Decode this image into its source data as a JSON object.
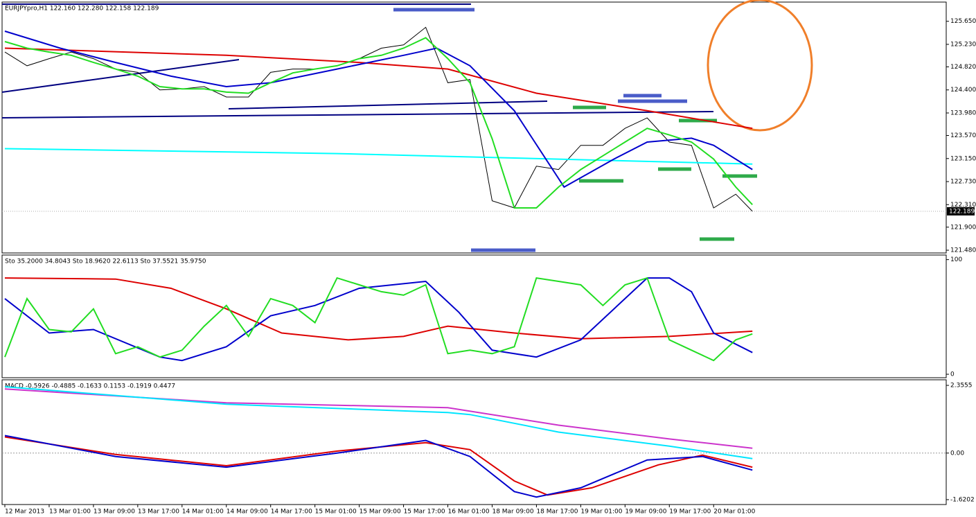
{
  "chart_data": [
    {
      "type": "line",
      "title": "EURJPYpro,H1  122.160 122.280 122.158 122.189",
      "xlim": [
        -0.5,
        170
      ],
      "ylim": [
        121.43,
        126.0
      ],
      "xticks": [
        {
          "value": 0,
          "label": "12 Mar 2013"
        },
        {
          "value": 8,
          "label": "13 Mar 01:00"
        },
        {
          "value": 16,
          "label": "13 Mar 09:00"
        },
        {
          "value": 24,
          "label": "13 Mar 17:00"
        },
        {
          "value": 32,
          "label": "14 Mar 01:00"
        },
        {
          "value": 40,
          "label": "14 Mar 09:00"
        },
        {
          "value": 48,
          "label": "14 Mar 17:00"
        },
        {
          "value": 56,
          "label": "15 Mar 01:00"
        },
        {
          "value": 64,
          "label": "15 Mar 09:00"
        },
        {
          "value": 72,
          "label": "15 Mar 17:00"
        },
        {
          "value": 80,
          "label": "16 Mar 01:00"
        },
        {
          "value": 88,
          "label": "18 Mar 09:00"
        },
        {
          "value": 96,
          "label": "18 Mar 17:00"
        },
        {
          "value": 104,
          "label": "19 Mar 01:00"
        },
        {
          "value": 112,
          "label": "19 Mar 09:00"
        },
        {
          "value": 120,
          "label": "19 Mar 17:00"
        },
        {
          "value": 128,
          "label": "20 Mar 01:00"
        }
      ],
      "yticks": [
        {
          "value": 125.65,
          "label": "125.650"
        },
        {
          "value": 125.23,
          "label": "125.230"
        },
        {
          "value": 124.82,
          "label": "124.820"
        },
        {
          "value": 124.4,
          "label": "124.400"
        },
        {
          "value": 123.98,
          "label": "123.980"
        },
        {
          "value": 123.57,
          "label": "123.570"
        },
        {
          "value": 123.15,
          "label": "123.150"
        },
        {
          "value": 122.73,
          "label": "122.730"
        },
        {
          "value": 122.31,
          "label": "122.310"
        },
        {
          "value": 121.9,
          "label": "121.900"
        },
        {
          "value": 121.48,
          "label": "121.480"
        }
      ],
      "last_price": 122.189,
      "series": [
        {
          "color": "#000000",
          "x": [
            0,
            4,
            8,
            12,
            16,
            20,
            24,
            28,
            32,
            36,
            40,
            44,
            48,
            52,
            56,
            60,
            64,
            68,
            72,
            76,
            80,
            84,
            88,
            92,
            96,
            100,
            104,
            108,
            112,
            116,
            120,
            124,
            128,
            132,
            135
          ],
          "values": [
            125.09,
            124.84,
            124.97,
            125.09,
            124.97,
            124.78,
            124.72,
            124.4,
            124.42,
            124.46,
            124.27,
            124.27,
            124.72,
            124.78,
            124.78,
            124.84,
            124.97,
            125.16,
            125.22,
            125.54,
            124.53,
            124.59,
            122.38,
            122.25,
            123.01,
            122.95,
            123.39,
            123.39,
            123.7,
            123.89,
            123.45,
            123.39,
            122.25,
            122.5,
            122.189
          ]
        },
        {
          "color": "#00ffff",
          "x": [
            0,
            60,
            135
          ],
          "values": [
            123.33,
            123.24,
            123.05
          ]
        },
        {
          "color": "#dd0000",
          "x": [
            0,
            40,
            64,
            80,
            96,
            116,
            135
          ],
          "values": [
            125.16,
            125.03,
            124.9,
            124.78,
            124.34,
            124.02,
            123.7
          ]
        },
        {
          "color": "#0000cc",
          "x": [
            0,
            10,
            20,
            30,
            40,
            48,
            60,
            72,
            78,
            84,
            92,
            101,
            110,
            116,
            124,
            128,
            135
          ],
          "values": [
            125.47,
            125.16,
            124.9,
            124.65,
            124.46,
            124.53,
            124.78,
            125.03,
            125.16,
            124.84,
            124.02,
            122.63,
            123.14,
            123.45,
            123.52,
            123.39,
            122.95
          ]
        },
        {
          "color": "#22dd22",
          "x": [
            0,
            4,
            8,
            12,
            16,
            20,
            24,
            28,
            32,
            36,
            40,
            44,
            48,
            52,
            56,
            60,
            64,
            68,
            72,
            76,
            80,
            84,
            88,
            92,
            96,
            100,
            104,
            108,
            112,
            116,
            120,
            124,
            128,
            132,
            135
          ],
          "values": [
            125.28,
            125.16,
            125.09,
            125.03,
            124.9,
            124.78,
            124.65,
            124.46,
            124.42,
            124.42,
            124.36,
            124.34,
            124.53,
            124.71,
            124.78,
            124.84,
            124.97,
            125.03,
            125.16,
            125.35,
            124.97,
            124.53,
            123.51,
            122.25,
            122.25,
            122.63,
            122.95,
            123.2,
            123.45,
            123.7,
            123.58,
            123.45,
            123.14,
            122.63,
            122.31
          ]
        }
      ]
    },
    {
      "type": "line",
      "title": "Sto 35.2000 34.8043  Sto 18.9620 22.6113  Sto 37.5521 35.9750",
      "ylim": [
        -3,
        104
      ],
      "yticks": [
        100,
        0
      ],
      "series": [
        {
          "color": "#dd0000",
          "x": [
            0,
            20,
            30,
            40,
            50,
            62,
            72,
            80,
            92,
            104,
            120,
            135
          ],
          "values": [
            84,
            83,
            75,
            57,
            36,
            30,
            33,
            42,
            36,
            31,
            33,
            37.5521
          ]
        },
        {
          "color": "#0000cc",
          "x": [
            0,
            8,
            16,
            28,
            32,
            40,
            48,
            56,
            64,
            76,
            82,
            88,
            96,
            104,
            112,
            116,
            120,
            124,
            128,
            135
          ],
          "values": [
            66,
            36,
            39,
            15,
            12,
            24,
            51,
            60,
            75,
            81,
            54,
            21,
            15,
            30,
            66,
            84,
            84,
            72,
            36,
            18.962
          ]
        },
        {
          "color": "#22dd22",
          "x": [
            0,
            4,
            8,
            12,
            16,
            20,
            24,
            28,
            32,
            36,
            40,
            44,
            48,
            52,
            56,
            60,
            64,
            68,
            72,
            76,
            80,
            84,
            88,
            92,
            96,
            100,
            104,
            108,
            112,
            116,
            120,
            124,
            128,
            132,
            135
          ],
          "values": [
            15,
            66,
            39,
            37,
            57,
            18,
            24,
            15,
            21,
            42,
            60,
            33,
            66,
            60,
            45,
            84,
            78,
            72,
            69,
            78,
            18,
            21,
            18,
            24,
            84,
            81,
            78,
            60,
            78,
            84,
            30,
            21,
            12,
            30,
            35.2
          ]
        }
      ]
    },
    {
      "type": "line",
      "title": "MACD -0.5926 -0.4885 -0.1633 0.1153 -0.1919 0.4477",
      "ylim": [
        -1.79,
        2.55
      ],
      "yticks": [
        2.3555,
        {
          "value": 0,
          "label": "0.00"
        },
        -1.6202
      ],
      "series": [
        {
          "color": "#cc33cc",
          "x": [
            0,
            40,
            80,
            100,
            120,
            135
          ],
          "values": [
            2.23,
            1.75,
            1.58,
            0.97,
            0.49,
            0.17
          ]
        },
        {
          "color": "#00e5ff",
          "x": [
            0,
            40,
            80,
            84,
            100,
            120,
            135
          ],
          "values": [
            2.31,
            1.7,
            1.41,
            1.34,
            0.73,
            0.24,
            -0.1919
          ]
        },
        {
          "color": "#dd0000",
          "x": [
            0,
            20,
            40,
            60,
            76,
            84,
            92,
            98,
            106,
            118,
            126,
            135
          ],
          "values": [
            0.56,
            -0.05,
            -0.44,
            0.07,
            0.36,
            0.12,
            -0.97,
            -1.46,
            -1.21,
            -0.41,
            -0.07,
            -0.49
          ]
        },
        {
          "color": "#0000cc",
          "x": [
            0,
            20,
            40,
            60,
            76,
            84,
            92,
            96,
            104,
            116,
            126,
            135
          ],
          "values": [
            0.61,
            -0.12,
            -0.49,
            0.0,
            0.44,
            -0.12,
            -1.34,
            -1.53,
            -1.21,
            -0.24,
            -0.12,
            -0.5926
          ]
        }
      ]
    }
  ]
}
